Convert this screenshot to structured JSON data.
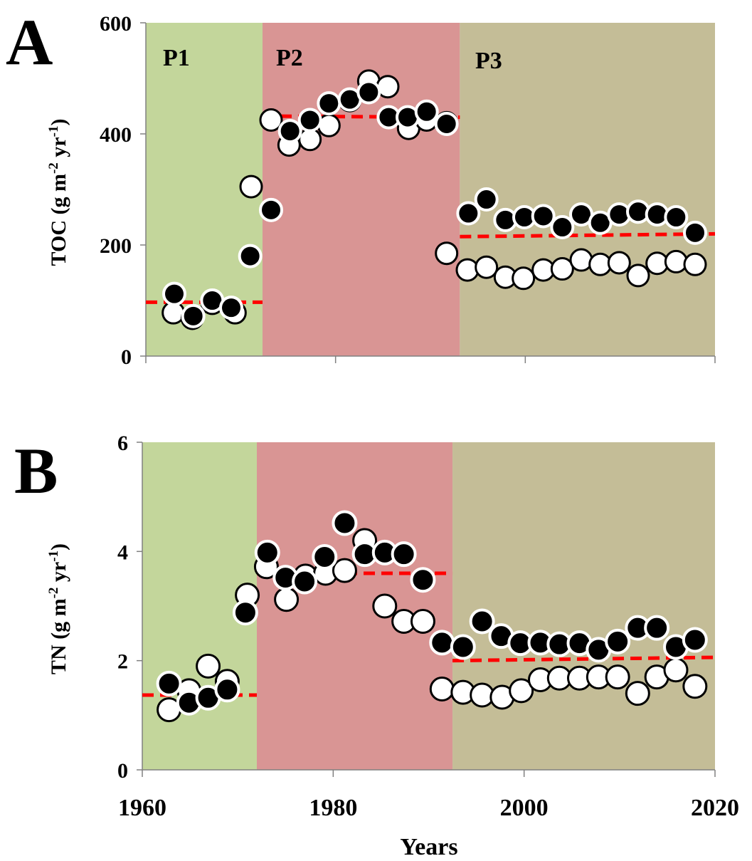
{
  "chart_data": [
    {
      "type": "scatter",
      "panel_label": "A",
      "ylabel_parts": [
        "TOC (g m",
        "-2",
        " yr",
        "-1",
        ")"
      ],
      "ylim": [
        0,
        600
      ],
      "yticks": [
        "0",
        "200",
        "400",
        "600"
      ],
      "xlim": [
        1960,
        2020
      ],
      "xtick_values": [
        1960,
        1980,
        2000,
        2020
      ],
      "grid": false,
      "periods": [
        {
          "label": "P1",
          "start": 1960,
          "end": 1972.3,
          "color": "#c3d69b"
        },
        {
          "label": "P2",
          "start": 1972.3,
          "end": 1993.1,
          "color": "#d99594"
        },
        {
          "label": "P3",
          "start": 1993.1,
          "end": 2020,
          "color": "#c4bd97"
        }
      ],
      "series": [
        {
          "style": "open",
          "fill": "#ffffff",
          "points": [
            [
              1962.9,
              78
            ],
            [
              1964.9,
              68
            ],
            [
              1967.0,
              95
            ],
            [
              1969.4,
              78
            ],
            [
              1971.1,
              305
            ],
            [
              1973.2,
              425
            ],
            [
              1975.1,
              380
            ],
            [
              1977.3,
              390
            ],
            [
              1979.3,
              415
            ],
            [
              1981.5,
              460
            ],
            [
              1983.5,
              495
            ],
            [
              1985.5,
              485
            ],
            [
              1987.7,
              410
            ],
            [
              1989.6,
              425
            ],
            [
              1991.7,
              420
            ],
            [
              1991.7,
              185
            ],
            [
              1993.9,
              155
            ],
            [
              1995.9,
              160
            ],
            [
              1997.9,
              142
            ],
            [
              1999.8,
              140
            ],
            [
              2001.9,
              155
            ],
            [
              2003.9,
              157
            ],
            [
              2005.9,
              173
            ],
            [
              2007.9,
              165
            ],
            [
              2009.9,
              168
            ],
            [
              2011.9,
              145
            ],
            [
              2013.9,
              167
            ],
            [
              2015.9,
              170
            ],
            [
              2017.9,
              165
            ]
          ]
        },
        {
          "style": "filled",
          "fill": "#000000",
          "points": [
            [
              1963.0,
              112
            ],
            [
              1965.0,
              72
            ],
            [
              1967.0,
              100
            ],
            [
              1969.0,
              87
            ],
            [
              1971.0,
              180
            ],
            [
              1973.2,
              263
            ],
            [
              1975.2,
              405
            ],
            [
              1977.3,
              425
            ],
            [
              1979.3,
              455
            ],
            [
              1981.5,
              462
            ],
            [
              1983.5,
              475
            ],
            [
              1985.6,
              430
            ],
            [
              1987.6,
              430
            ],
            [
              1989.6,
              440
            ],
            [
              1991.7,
              418
            ],
            [
              1994.0,
              257
            ],
            [
              1995.9,
              282
            ],
            [
              1997.9,
              245
            ],
            [
              1999.9,
              250
            ],
            [
              2001.9,
              252
            ],
            [
              2003.9,
              232
            ],
            [
              2005.9,
              255
            ],
            [
              2007.9,
              240
            ],
            [
              2009.9,
              255
            ],
            [
              2011.9,
              260
            ],
            [
              2013.9,
              255
            ],
            [
              2015.9,
              250
            ],
            [
              2017.9,
              222
            ]
          ]
        }
      ],
      "mean_lines": [
        {
          "x": [
            1960,
            1972.3
          ],
          "y": [
            97,
            97
          ]
        },
        {
          "x": [
            1972.3,
            1993.1
          ],
          "y": [
            432,
            430
          ]
        },
        {
          "x": [
            1993.1,
            2020
          ],
          "y": [
            215,
            220
          ]
        }
      ],
      "colors": {
        "mean_line": "#ff0000"
      }
    },
    {
      "type": "scatter",
      "panel_label": "B",
      "ylabel_parts": [
        "TN (g m",
        "-2",
        " yr",
        "-1",
        ")"
      ],
      "ylim": [
        0,
        6
      ],
      "yticks": [
        "0",
        "2",
        "4",
        "6"
      ],
      "xlim": [
        1960,
        2020
      ],
      "xticks": [
        "1960",
        "1980",
        "2000",
        "2020"
      ],
      "xtick_values": [
        1960,
        1980,
        2000,
        2020
      ],
      "xlabel": "Years",
      "grid": false,
      "periods": [
        {
          "start": 1960,
          "end": 1972.0,
          "color": "#c3d69b"
        },
        {
          "start": 1972.0,
          "end": 1992.5,
          "color": "#d99594"
        },
        {
          "start": 1992.5,
          "end": 2020,
          "color": "#c4bd97"
        }
      ],
      "series": [
        {
          "style": "open",
          "fill": "#ffffff",
          "points": [
            [
              1962.8,
              1.1
            ],
            [
              1964.9,
              1.45
            ],
            [
              1966.9,
              1.9
            ],
            [
              1968.9,
              1.62
            ],
            [
              1971.0,
              3.2
            ],
            [
              1973.0,
              3.72
            ],
            [
              1975.1,
              3.12
            ],
            [
              1977.1,
              3.55
            ],
            [
              1979.2,
              3.6
            ],
            [
              1981.2,
              3.65
            ],
            [
              1983.3,
              4.2
            ],
            [
              1985.4,
              3.0
            ],
            [
              1987.4,
              2.72
            ],
            [
              1989.4,
              2.72
            ],
            [
              1991.4,
              1.48
            ],
            [
              1993.6,
              1.42
            ],
            [
              1995.6,
              1.37
            ],
            [
              1997.7,
              1.33
            ],
            [
              1999.7,
              1.45
            ],
            [
              2001.7,
              1.65
            ],
            [
              2003.7,
              1.68
            ],
            [
              2005.8,
              1.68
            ],
            [
              2007.8,
              1.7
            ],
            [
              2009.8,
              1.7
            ],
            [
              2011.9,
              1.4
            ],
            [
              2013.9,
              1.7
            ],
            [
              2015.9,
              1.83
            ],
            [
              2017.9,
              1.53
            ]
          ]
        },
        {
          "style": "filled",
          "fill": "#000000",
          "points": [
            [
              1962.8,
              1.58
            ],
            [
              1964.9,
              1.23
            ],
            [
              1966.9,
              1.32
            ],
            [
              1968.9,
              1.47
            ],
            [
              1970.8,
              2.88
            ],
            [
              1973.1,
              3.98
            ],
            [
              1975.0,
              3.52
            ],
            [
              1977.0,
              3.45
            ],
            [
              1979.1,
              3.9
            ],
            [
              1981.2,
              4.52
            ],
            [
              1983.3,
              3.95
            ],
            [
              1985.4,
              3.98
            ],
            [
              1987.4,
              3.95
            ],
            [
              1989.4,
              3.48
            ],
            [
              1991.4,
              2.33
            ],
            [
              1993.6,
              2.25
            ],
            [
              1995.6,
              2.72
            ],
            [
              1997.6,
              2.45
            ],
            [
              1999.6,
              2.32
            ],
            [
              2001.7,
              2.33
            ],
            [
              2003.7,
              2.3
            ],
            [
              2005.8,
              2.32
            ],
            [
              2007.8,
              2.2
            ],
            [
              2009.8,
              2.35
            ],
            [
              2011.9,
              2.6
            ],
            [
              2013.9,
              2.6
            ],
            [
              2015.9,
              2.25
            ],
            [
              2017.9,
              2.38
            ]
          ]
        }
      ],
      "mean_lines": [
        {
          "x": [
            1960,
            1972.0
          ],
          "y": [
            1.37,
            1.37
          ]
        },
        {
          "x": [
            1972.0,
            1992.5
          ],
          "y": [
            3.6,
            3.6
          ]
        },
        {
          "x": [
            1992.5,
            2020
          ],
          "y": [
            2.0,
            2.06
          ]
        }
      ],
      "colors": {
        "mean_line": "#ff0000"
      }
    }
  ]
}
